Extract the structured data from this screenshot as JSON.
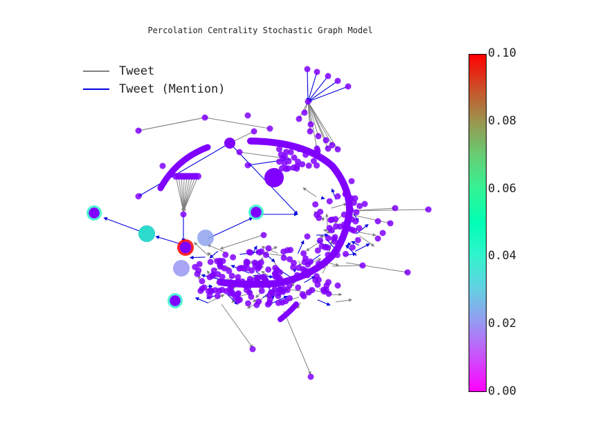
{
  "title": "Percolation Centrality Stochastic Graph Model",
  "legend": {
    "tweet": "Tweet",
    "mention": "Tweet (Mention)"
  },
  "colorbar": {
    "min": 0.0,
    "max": 0.1,
    "ticks": [
      "0.10",
      "0.08",
      "0.06",
      "0.04",
      "0.02",
      "0.00"
    ],
    "colormap": "rainbow"
  },
  "colors": {
    "tweet_edge": "#808080",
    "mention_edge": "#0000dd",
    "low_node": "#8000ff"
  },
  "highlighted_node_values": [
    0.1,
    0.045,
    0.022,
    0.02,
    0.04,
    0.04,
    0.04
  ]
}
